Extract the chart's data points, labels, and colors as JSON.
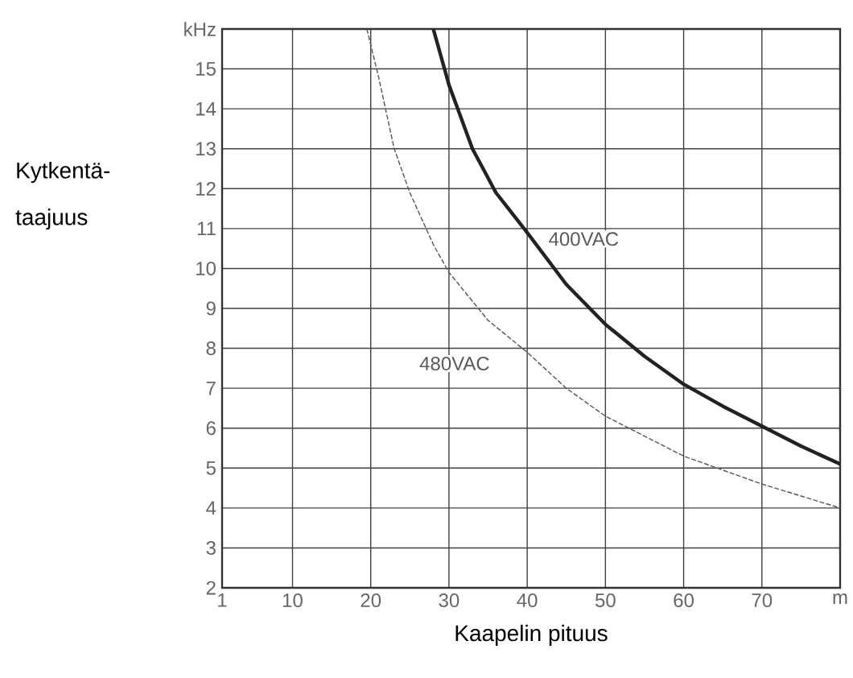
{
  "chart_data": {
    "type": "line",
    "xlabel": "Kaapelin pituus",
    "ylabel": "Kytkentä-taajuus",
    "xlim": [
      1,
      80
    ],
    "ylim": [
      2,
      16
    ],
    "xticks": [
      1,
      10,
      20,
      30,
      40,
      50,
      60,
      70,
      {
        "value": 80,
        "label": "m"
      }
    ],
    "yticks": [
      2,
      3,
      4,
      5,
      6,
      7,
      8,
      9,
      10,
      11,
      12,
      13,
      14,
      15,
      {
        "value": 16,
        "label": "kHz"
      }
    ],
    "grid": true,
    "legend": false,
    "marker": "none",
    "series": [
      {
        "name": "400VAC",
        "color": "#222222",
        "line_style": "solid",
        "x": [
          28,
          30,
          33,
          36,
          40,
          45,
          50,
          55,
          60,
          65,
          70,
          75,
          80
        ],
        "values": [
          16,
          14.6,
          13,
          11.9,
          10.9,
          9.6,
          8.6,
          7.8,
          7.1,
          6.55,
          6.05,
          5.55,
          5.1
        ]
      },
      {
        "name": "480VAC",
        "color": "#555555",
        "line_style": "dashed",
        "x": [
          19.5,
          21,
          23,
          25,
          28,
          30,
          35,
          40,
          45,
          50,
          55,
          60,
          65,
          70,
          75,
          80
        ],
        "values": [
          16,
          14.8,
          13,
          11.9,
          10.6,
          9.9,
          8.7,
          7.9,
          7.0,
          6.3,
          5.8,
          5.3,
          4.95,
          4.6,
          4.3,
          4.0
        ]
      }
    ]
  }
}
